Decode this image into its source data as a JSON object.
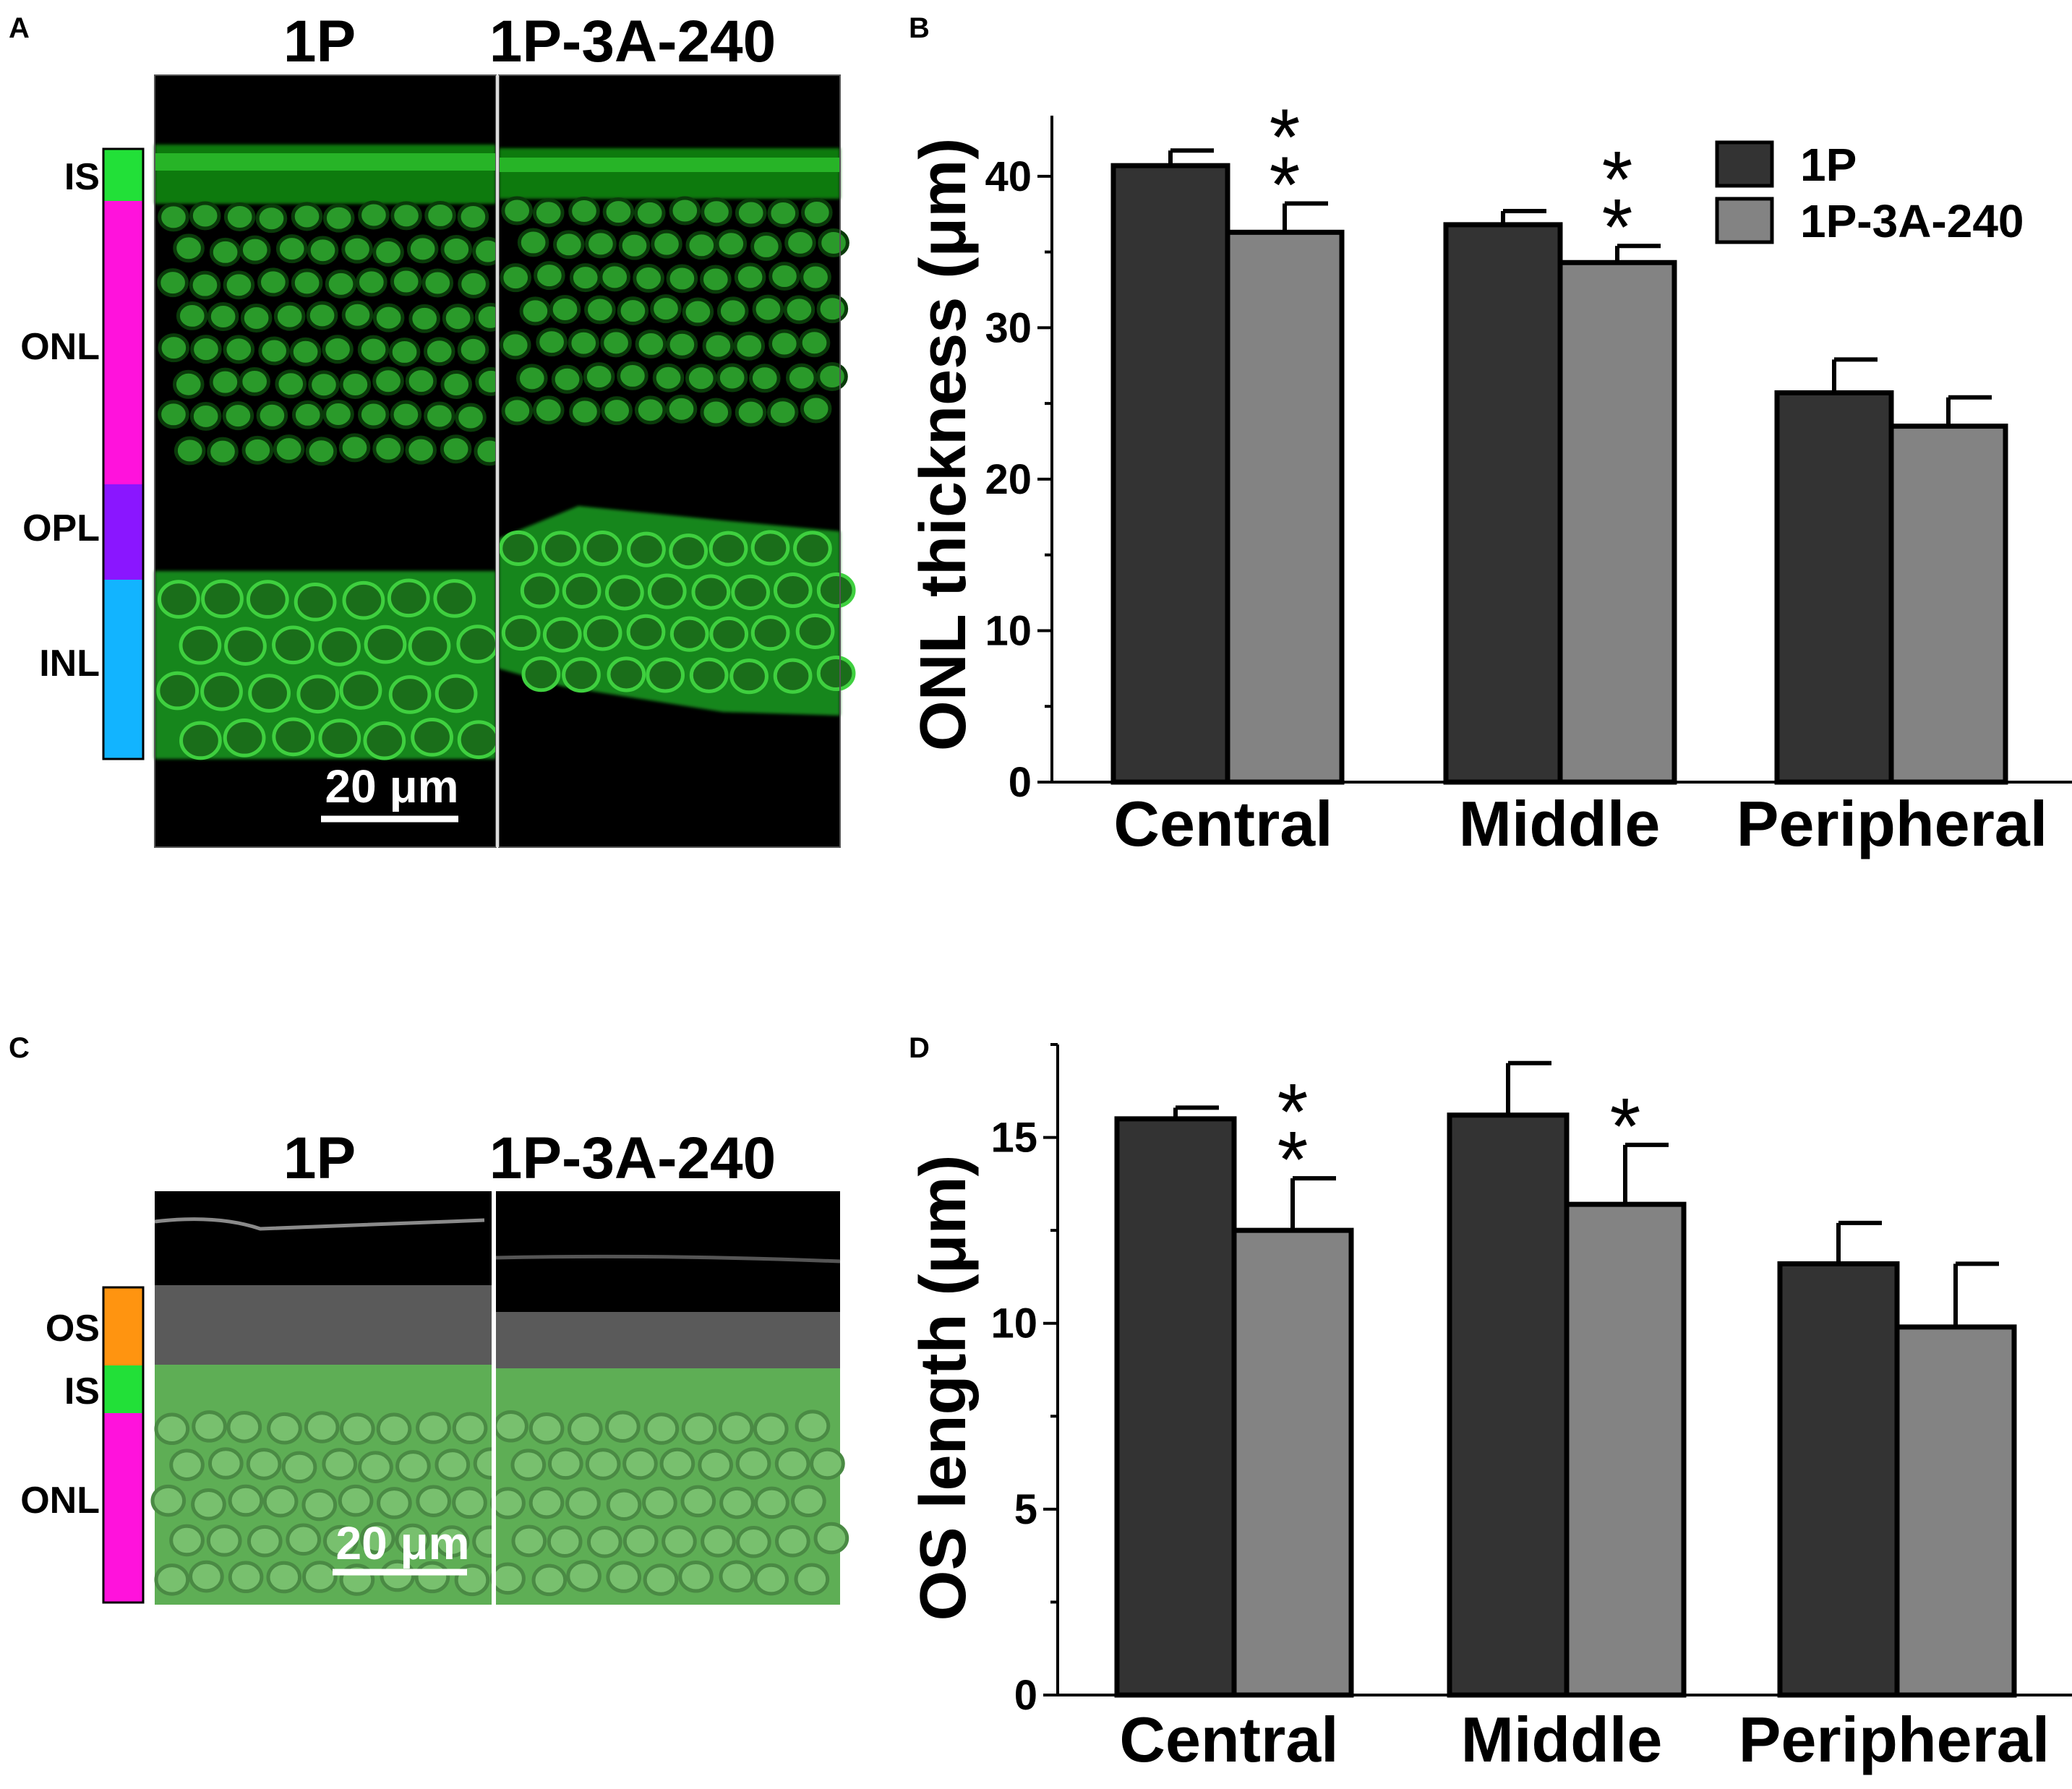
{
  "panels": {
    "A": {
      "letter": "A",
      "image_titles": [
        "1P",
        "1P-3A-240"
      ],
      "layers": [
        {
          "label": "IS",
          "color": "#22e038"
        },
        {
          "label": "ONL",
          "color": "#ff12dc"
        },
        {
          "label": "OPL",
          "color": "#8a16ff"
        },
        {
          "label": "INL",
          "color": "#12b4ff"
        }
      ],
      "scale_bar": "20 μm"
    },
    "C": {
      "letter": "C",
      "image_titles": [
        "1P",
        "1P-3A-240"
      ],
      "layers": [
        {
          "label": "OS",
          "color": "#ff9410"
        },
        {
          "label": "IS",
          "color": "#22e038"
        },
        {
          "label": "ONL",
          "color": "#ff12dc"
        }
      ],
      "scale_bar": "20 μm"
    }
  },
  "colors": {
    "series_1P": "#333333",
    "series_1P3A240": "#838383",
    "fluorescence": "#1fc21f"
  },
  "chart_data": [
    {
      "panel": "B",
      "type": "bar",
      "ylabel": "ONL thickness (μm)",
      "categories": [
        "Central",
        "Middle",
        "Peripheral"
      ],
      "ylim": [
        0,
        44
      ],
      "yticks": [
        0,
        10,
        20,
        30,
        40
      ],
      "legend": "top-right",
      "series": [
        {
          "name": "1P",
          "values": [
            40.7,
            36.8,
            25.7
          ],
          "errors": [
            1.0,
            0.9,
            2.2
          ]
        },
        {
          "name": "1P-3A-240",
          "values": [
            36.3,
            34.3,
            23.5
          ],
          "errors": [
            1.9,
            1.1,
            1.9
          ]
        }
      ],
      "annotations": [
        {
          "category": "Central",
          "series": "1P-3A-240",
          "text": "**"
        },
        {
          "category": "Middle",
          "series": "1P-3A-240",
          "text": "**"
        }
      ]
    },
    {
      "panel": "D",
      "type": "bar",
      "ylabel": "OS length (μm)",
      "categories": [
        "Central",
        "Middle",
        "Peripheral"
      ],
      "ylim": [
        0,
        17.5
      ],
      "yticks": [
        0,
        5,
        10,
        15
      ],
      "series": [
        {
          "name": "1P",
          "values": [
            15.5,
            15.6,
            11.6
          ],
          "errors": [
            0.3,
            1.4,
            1.1
          ]
        },
        {
          "name": "1P-3A-240",
          "values": [
            12.5,
            13.2,
            9.9
          ],
          "errors": [
            1.4,
            1.6,
            1.7
          ]
        }
      ],
      "annotations": [
        {
          "category": "Central",
          "series": "1P-3A-240",
          "text": "**"
        },
        {
          "category": "Middle",
          "series": "1P-3A-240",
          "text": "*"
        }
      ]
    }
  ]
}
